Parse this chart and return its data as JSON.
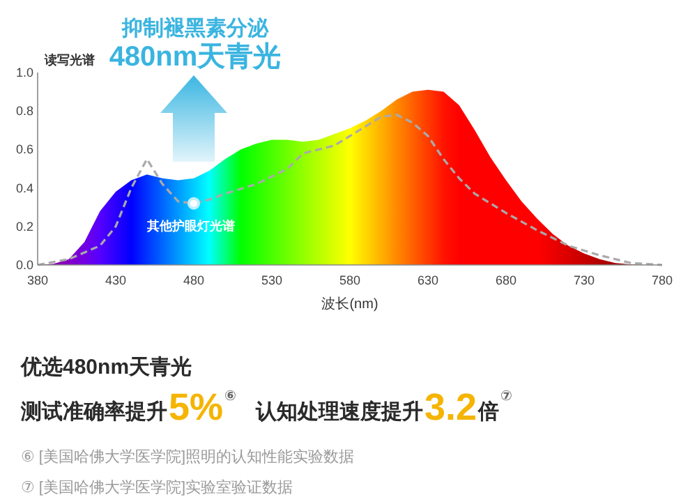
{
  "chart_data": {
    "type": "area",
    "xlabel": "波长(nm)",
    "ylabel": "读写光谱",
    "xlim": [
      380,
      780
    ],
    "ylim": [
      0,
      1
    ],
    "xticks": [
      380,
      430,
      480,
      530,
      580,
      630,
      680,
      730,
      780
    ],
    "yticks": [
      {
        "value": 0,
        "label": "0.0"
      },
      {
        "value": 0.2,
        "label": "0.2"
      },
      {
        "value": 0.4,
        "label": "0.4"
      },
      {
        "value": 0.6,
        "label": "0.6"
      },
      {
        "value": 0.8,
        "label": "0.8"
      },
      {
        "value": 1,
        "label": "1.0"
      }
    ],
    "grid": false,
    "series": [
      {
        "x": [
          380,
          390,
          400,
          410,
          420,
          430,
          440,
          450,
          460,
          470,
          480,
          490,
          500,
          510,
          520,
          530,
          540,
          550,
          560,
          570,
          580,
          590,
          600,
          610,
          620,
          630,
          640,
          650,
          660,
          670,
          680,
          690,
          700,
          710,
          720,
          730,
          740,
          750,
          760,
          770
        ],
        "values": [
          0,
          0.005,
          0.03,
          0.12,
          0.28,
          0.38,
          0.44,
          0.47,
          0.45,
          0.44,
          0.45,
          0.49,
          0.55,
          0.6,
          0.63,
          0.65,
          0.65,
          0.64,
          0.65,
          0.68,
          0.71,
          0.75,
          0.8,
          0.86,
          0.9,
          0.91,
          0.9,
          0.83,
          0.7,
          0.56,
          0.44,
          0.33,
          0.24,
          0.16,
          0.1,
          0.06,
          0.03,
          0.01,
          0.003,
          0
        ]
      },
      {
        "type": "line",
        "name": "其他护眼灯光谱",
        "color": "#aaaaaa",
        "line_style": "dashed",
        "x": [
          380,
          400,
          420,
          430,
          440,
          450,
          460,
          470,
          480,
          490,
          500,
          520,
          540,
          550,
          560,
          570,
          580,
          590,
          600,
          610,
          620,
          630,
          640,
          650,
          660,
          680,
          700,
          720,
          740,
          760,
          780
        ],
        "values": [
          0,
          0.03,
          0.1,
          0.2,
          0.4,
          0.55,
          0.42,
          0.33,
          0.32,
          0.34,
          0.37,
          0.42,
          0.5,
          0.58,
          0.6,
          0.62,
          0.67,
          0.72,
          0.77,
          0.78,
          0.74,
          0.67,
          0.55,
          0.45,
          0.37,
          0.27,
          0.18,
          0.1,
          0.05,
          0.01,
          0
        ]
      },
      {
        "type": "scatter",
        "color": "#ffffff",
        "marker": "circle",
        "x": [
          480
        ],
        "values": [
          0.32
        ]
      }
    ],
    "annotations": [
      "抑制褪黑素分泌",
      "480nm天青光",
      "优选480nm天青光",
      "测试准确率提升",
      "5%",
      "⑥",
      "认知处理速度提升",
      "3.2",
      "倍",
      "⑦",
      "⑥ [美国哈佛大学医学院]照明的认知性能实验数据",
      "⑦ [美国哈佛大学医学院]实验室验证数据"
    ]
  }
}
